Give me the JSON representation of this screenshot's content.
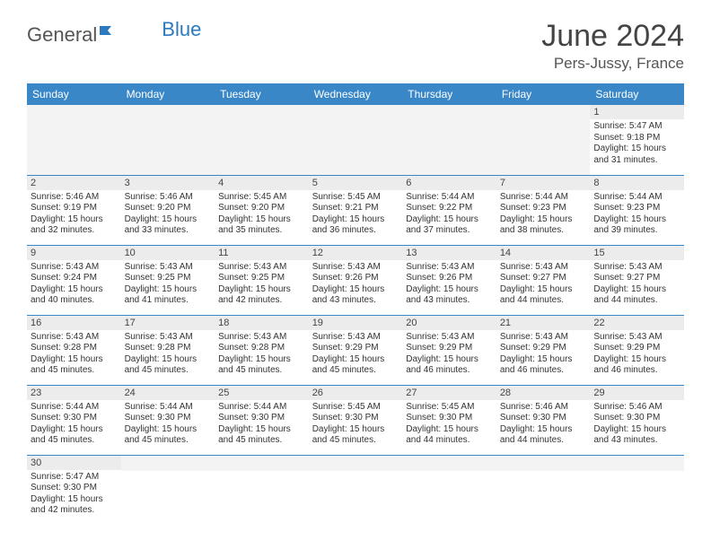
{
  "logo": {
    "text1": "General",
    "text2": "Blue"
  },
  "title": "June 2024",
  "location": "Pers-Jussy, France",
  "colors": {
    "header_bg": "#3a87c8",
    "header_text": "#ffffff",
    "daynum_bg": "#ececec",
    "border": "#3a87c8",
    "empty_bg": "#f3f3f3",
    "page_bg": "#ffffff",
    "logo_gray": "#555555",
    "logo_blue": "#2b7ac0"
  },
  "fonts": {
    "title_size_pt": 26,
    "location_size_pt": 13,
    "header_size_pt": 9,
    "daynum_size_pt": 8,
    "body_size_pt": 7.5
  },
  "dayHeaders": [
    "Sunday",
    "Monday",
    "Tuesday",
    "Wednesday",
    "Thursday",
    "Friday",
    "Saturday"
  ],
  "weeks": [
    [
      null,
      null,
      null,
      null,
      null,
      null,
      {
        "n": "1",
        "sunrise": "Sunrise: 5:47 AM",
        "sunset": "Sunset: 9:18 PM",
        "daylight": "Daylight: 15 hours and 31 minutes."
      }
    ],
    [
      {
        "n": "2",
        "sunrise": "Sunrise: 5:46 AM",
        "sunset": "Sunset: 9:19 PM",
        "daylight": "Daylight: 15 hours and 32 minutes."
      },
      {
        "n": "3",
        "sunrise": "Sunrise: 5:46 AM",
        "sunset": "Sunset: 9:20 PM",
        "daylight": "Daylight: 15 hours and 33 minutes."
      },
      {
        "n": "4",
        "sunrise": "Sunrise: 5:45 AM",
        "sunset": "Sunset: 9:20 PM",
        "daylight": "Daylight: 15 hours and 35 minutes."
      },
      {
        "n": "5",
        "sunrise": "Sunrise: 5:45 AM",
        "sunset": "Sunset: 9:21 PM",
        "daylight": "Daylight: 15 hours and 36 minutes."
      },
      {
        "n": "6",
        "sunrise": "Sunrise: 5:44 AM",
        "sunset": "Sunset: 9:22 PM",
        "daylight": "Daylight: 15 hours and 37 minutes."
      },
      {
        "n": "7",
        "sunrise": "Sunrise: 5:44 AM",
        "sunset": "Sunset: 9:23 PM",
        "daylight": "Daylight: 15 hours and 38 minutes."
      },
      {
        "n": "8",
        "sunrise": "Sunrise: 5:44 AM",
        "sunset": "Sunset: 9:23 PM",
        "daylight": "Daylight: 15 hours and 39 minutes."
      }
    ],
    [
      {
        "n": "9",
        "sunrise": "Sunrise: 5:43 AM",
        "sunset": "Sunset: 9:24 PM",
        "daylight": "Daylight: 15 hours and 40 minutes."
      },
      {
        "n": "10",
        "sunrise": "Sunrise: 5:43 AM",
        "sunset": "Sunset: 9:25 PM",
        "daylight": "Daylight: 15 hours and 41 minutes."
      },
      {
        "n": "11",
        "sunrise": "Sunrise: 5:43 AM",
        "sunset": "Sunset: 9:25 PM",
        "daylight": "Daylight: 15 hours and 42 minutes."
      },
      {
        "n": "12",
        "sunrise": "Sunrise: 5:43 AM",
        "sunset": "Sunset: 9:26 PM",
        "daylight": "Daylight: 15 hours and 43 minutes."
      },
      {
        "n": "13",
        "sunrise": "Sunrise: 5:43 AM",
        "sunset": "Sunset: 9:26 PM",
        "daylight": "Daylight: 15 hours and 43 minutes."
      },
      {
        "n": "14",
        "sunrise": "Sunrise: 5:43 AM",
        "sunset": "Sunset: 9:27 PM",
        "daylight": "Daylight: 15 hours and 44 minutes."
      },
      {
        "n": "15",
        "sunrise": "Sunrise: 5:43 AM",
        "sunset": "Sunset: 9:27 PM",
        "daylight": "Daylight: 15 hours and 44 minutes."
      }
    ],
    [
      {
        "n": "16",
        "sunrise": "Sunrise: 5:43 AM",
        "sunset": "Sunset: 9:28 PM",
        "daylight": "Daylight: 15 hours and 45 minutes."
      },
      {
        "n": "17",
        "sunrise": "Sunrise: 5:43 AM",
        "sunset": "Sunset: 9:28 PM",
        "daylight": "Daylight: 15 hours and 45 minutes."
      },
      {
        "n": "18",
        "sunrise": "Sunrise: 5:43 AM",
        "sunset": "Sunset: 9:28 PM",
        "daylight": "Daylight: 15 hours and 45 minutes."
      },
      {
        "n": "19",
        "sunrise": "Sunrise: 5:43 AM",
        "sunset": "Sunset: 9:29 PM",
        "daylight": "Daylight: 15 hours and 45 minutes."
      },
      {
        "n": "20",
        "sunrise": "Sunrise: 5:43 AM",
        "sunset": "Sunset: 9:29 PM",
        "daylight": "Daylight: 15 hours and 46 minutes."
      },
      {
        "n": "21",
        "sunrise": "Sunrise: 5:43 AM",
        "sunset": "Sunset: 9:29 PM",
        "daylight": "Daylight: 15 hours and 46 minutes."
      },
      {
        "n": "22",
        "sunrise": "Sunrise: 5:43 AM",
        "sunset": "Sunset: 9:29 PM",
        "daylight": "Daylight: 15 hours and 46 minutes."
      }
    ],
    [
      {
        "n": "23",
        "sunrise": "Sunrise: 5:44 AM",
        "sunset": "Sunset: 9:30 PM",
        "daylight": "Daylight: 15 hours and 45 minutes."
      },
      {
        "n": "24",
        "sunrise": "Sunrise: 5:44 AM",
        "sunset": "Sunset: 9:30 PM",
        "daylight": "Daylight: 15 hours and 45 minutes."
      },
      {
        "n": "25",
        "sunrise": "Sunrise: 5:44 AM",
        "sunset": "Sunset: 9:30 PM",
        "daylight": "Daylight: 15 hours and 45 minutes."
      },
      {
        "n": "26",
        "sunrise": "Sunrise: 5:45 AM",
        "sunset": "Sunset: 9:30 PM",
        "daylight": "Daylight: 15 hours and 45 minutes."
      },
      {
        "n": "27",
        "sunrise": "Sunrise: 5:45 AM",
        "sunset": "Sunset: 9:30 PM",
        "daylight": "Daylight: 15 hours and 44 minutes."
      },
      {
        "n": "28",
        "sunrise": "Sunrise: 5:46 AM",
        "sunset": "Sunset: 9:30 PM",
        "daylight": "Daylight: 15 hours and 44 minutes."
      },
      {
        "n": "29",
        "sunrise": "Sunrise: 5:46 AM",
        "sunset": "Sunset: 9:30 PM",
        "daylight": "Daylight: 15 hours and 43 minutes."
      }
    ],
    [
      {
        "n": "30",
        "sunrise": "Sunrise: 5:47 AM",
        "sunset": "Sunset: 9:30 PM",
        "daylight": "Daylight: 15 hours and 42 minutes."
      },
      null,
      null,
      null,
      null,
      null,
      null
    ]
  ]
}
